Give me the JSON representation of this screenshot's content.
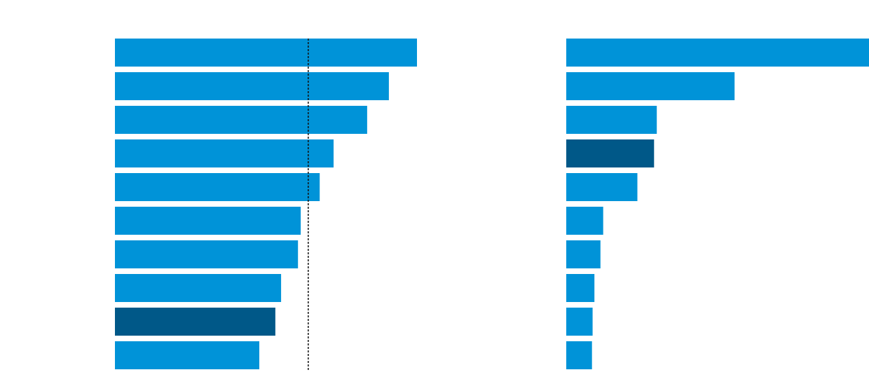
{
  "chart_data": [
    {
      "type": "bar",
      "orientation": "horizontal",
      "values": [
        100,
        90.7,
        83.5,
        72.4,
        67.8,
        61.5,
        60.6,
        55.0,
        53.1,
        47.8
      ],
      "highlight_index": 8,
      "reference_line": {
        "value": 64.0,
        "style": "dashed"
      },
      "xlim": [
        0,
        100
      ],
      "grid": false,
      "legend": "none"
    },
    {
      "type": "bar",
      "orientation": "horizontal",
      "values": [
        100,
        55.6,
        29.9,
        29.0,
        23.5,
        12.2,
        11.3,
        9.3,
        8.7,
        8.5
      ],
      "highlight_index": 3,
      "xlim": [
        0,
        100
      ],
      "grid": false,
      "legend": "none"
    }
  ],
  "colors": {
    "bar": "#0093d8",
    "highlight": "#005888",
    "reference_line": "#111111"
  }
}
